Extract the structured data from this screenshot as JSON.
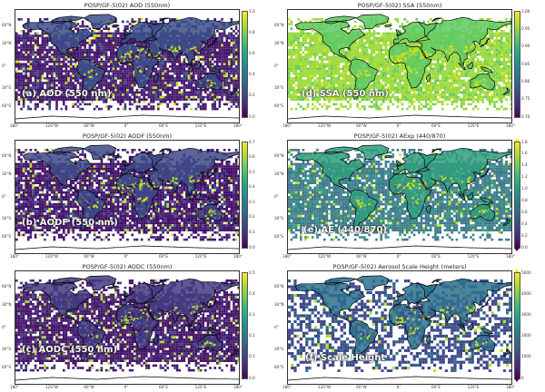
{
  "panels": [
    {
      "id": "aod",
      "title": "POSP/GF-5(02) AOD (550nm)",
      "label": "(a) AOD (550 nm)",
      "colorbar_ticks": [
        "1.0",
        "0.8",
        "0.6",
        "0.4",
        "0.2",
        "0.0"
      ],
      "colorbar_arrows": "none",
      "ocean_color": "#46176c",
      "land_color": "#3b4f8b",
      "bright_color": "#c7e020",
      "coverage": "full"
    },
    {
      "id": "ssa",
      "title": "POSP/GF-5(02) SSA (550nm)",
      "label": "(d) SSA (550 nm)",
      "colorbar_ticks": [
        "1.00",
        "0.95",
        "0.90",
        "0.85",
        "0.80",
        "0.75",
        "0.70"
      ],
      "colorbar_arrows": "none",
      "ocean_color": "#9bd93c",
      "land_color": "#5ec962",
      "bright_color": "#dde318",
      "coverage": "full"
    },
    {
      "id": "aodf",
      "title": "POSP/GF-5(02) AODF (550nm)",
      "label": "(b) AODF (550 nm)",
      "colorbar_ticks": [
        "0.7",
        "0.6",
        "0.5",
        "0.4",
        "0.3",
        "0.2",
        "0.1",
        "0.0"
      ],
      "colorbar_arrows": "none",
      "ocean_color": "#440f68",
      "land_color": "#3e4a89",
      "bright_color": "#b5de2b",
      "coverage": "full"
    },
    {
      "id": "ae",
      "title": "POSP/GF-5(02) AExp (440/870)",
      "label": "(e) AE (440/870)",
      "colorbar_ticks": [
        "1.8",
        "1.6",
        "1.4",
        "1.2",
        "1.0",
        "0.8",
        "0.6",
        "0.4",
        "0.2",
        "0.0"
      ],
      "colorbar_arrows": "both",
      "ocean_color": "#3e7a8c",
      "land_color": "#2f9e7e",
      "bright_color": "#c2df23",
      "coverage": "full"
    },
    {
      "id": "aodc",
      "title": "POSP/GF-5(02) AODC (550nm)",
      "label": "(c) AODC (550 nm)",
      "colorbar_ticks": [
        "0.5",
        "0.4",
        "0.3",
        "0.2",
        "0.1",
        "0.0"
      ],
      "colorbar_arrows": "none",
      "ocean_color": "#451469",
      "land_color": "#433c84",
      "bright_color": "#a8db34",
      "coverage": "full"
    },
    {
      "id": "sh",
      "title": "POSP/GF-5(02) Aerosol Scale Height (meters)",
      "label": "(f) Scale Height",
      "colorbar_ticks": [
        "5000",
        "4000",
        "3000",
        "2000",
        "1000",
        "0"
      ],
      "colorbar_arrows": "both",
      "ocean_color": "#3f4a8a",
      "land_color": "#2d708e",
      "bright_color": "#b8de29",
      "coverage": "sparse"
    }
  ],
  "lat_ticks": [
    "60°N",
    "30°N",
    "0°",
    "30°S",
    "60°S"
  ],
  "lon_ticks": [
    "180°",
    "120°W",
    "60°W",
    "0°",
    "60°E",
    "120°E",
    "180°"
  ],
  "colormap": "viridis"
}
